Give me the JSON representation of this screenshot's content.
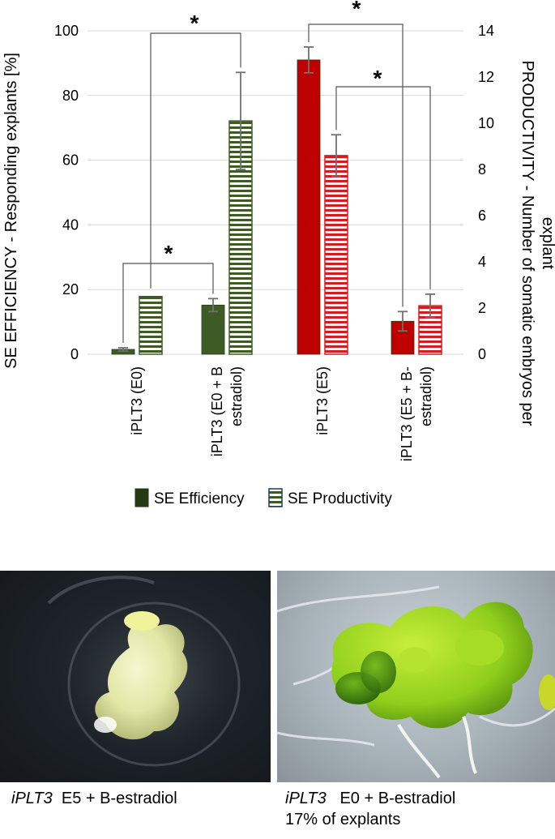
{
  "chart_data": {
    "type": "bar",
    "categories": [
      "iPLT3 (E0)",
      "iPLT3 (E0 + B estradiol)",
      "iPLT3 (E5)",
      "iPLT3 (E5 + B-estradiol)"
    ],
    "category_label_lines": [
      [
        "iPLT3 (E0)"
      ],
      [
        "iPLT3 (E0 + B",
        "estradiol)"
      ],
      [
        "iPLT3 (E5)"
      ],
      [
        "iPLT3 (E5 + B-",
        "estradiol)"
      ]
    ],
    "series": [
      {
        "name": "SE Efficiency",
        "axis": "left",
        "values": [
          1.5,
          15.2,
          91,
          10.2
        ],
        "errors": [
          0.5,
          2,
          4,
          3
        ]
      },
      {
        "name": "SE Productivity",
        "axis": "right",
        "values": [
          2.5,
          10.1,
          8.6,
          2.1
        ],
        "errors": [
          0,
          2.1,
          0.9,
          0.5
        ]
      }
    ],
    "ylabel": "SE EFFICIENCY - Responding explants [%]",
    "y2label_lines": [
      "PRODUCTIVITY - Number of somatic embryos per",
      "explant"
    ],
    "ylim": [
      0,
      100
    ],
    "y2lim": [
      0,
      14
    ],
    "yticks": [
      0,
      20,
      40,
      60,
      80,
      100
    ],
    "y2ticks": [
      0,
      2,
      4,
      6,
      8,
      10,
      12,
      14
    ],
    "significance_marker": "*",
    "grid": true,
    "legend_position": "bottom",
    "colors": {
      "efficiency_by_category": [
        "#3e5b26",
        "#3e5b26",
        "#bf0000",
        "#bf0000"
      ],
      "productivity_stripe_by_category": [
        "#3e5b26",
        "#3e5b26",
        "#d01f1f",
        "#d01f1f"
      ],
      "error_bar": "#707070",
      "grid": "#d9d9d9"
    }
  },
  "photos": [
    {
      "caption_italic": "iPLT3",
      "caption_rest": "E5 + B-estradiol",
      "caption_line2": ""
    },
    {
      "caption_italic": "iPLT3",
      "caption_rest": "E0 + B-estradiol",
      "caption_line2": "17% of explants"
    }
  ]
}
